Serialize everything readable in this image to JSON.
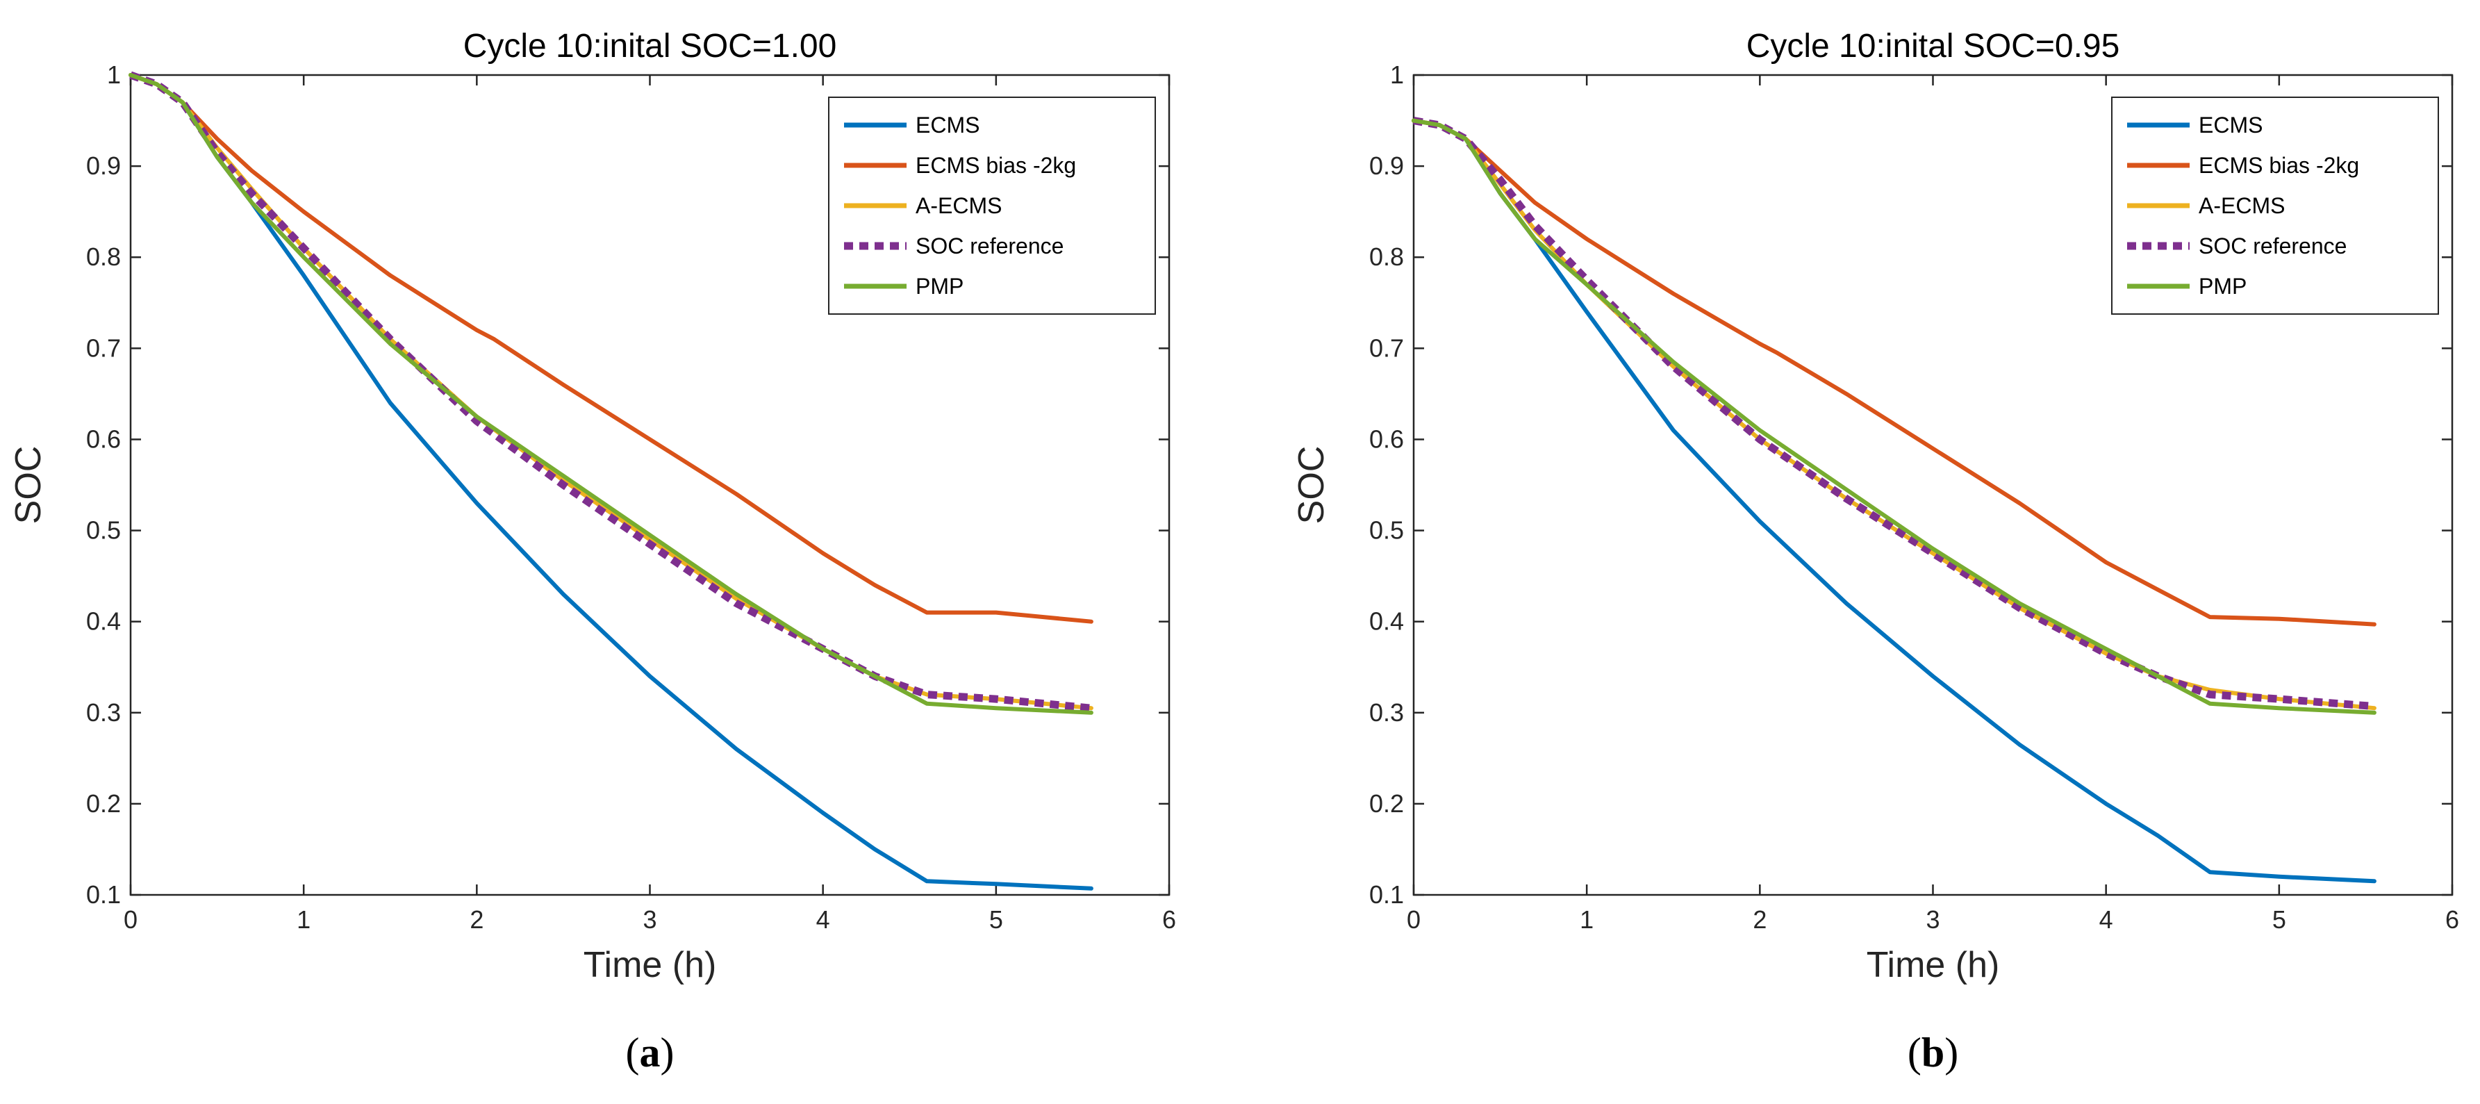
{
  "chart_data": [
    {
      "type": "line",
      "panel_label": "(a)",
      "panel_letter": "a",
      "title": "Cycle 10:inital SOC=1.00",
      "xlabel": "Time (h)",
      "ylabel": "SOC",
      "xlim": [
        0,
        6
      ],
      "ylim": [
        0.1,
        1
      ],
      "x_ticks": [
        "0",
        "1",
        "2",
        "3",
        "4",
        "5",
        "6"
      ],
      "y_ticks": [
        "0.1",
        "0.2",
        "0.3",
        "0.4",
        "0.5",
        "0.6",
        "0.7",
        "0.8",
        "0.9",
        "1"
      ],
      "legend_position": "top-right",
      "series": [
        {
          "name": "ECMS",
          "color": "#0072BD",
          "dash": "solid",
          "x": [
            0,
            0.15,
            0.3,
            0.5,
            0.7,
            1.0,
            1.5,
            2.0,
            2.5,
            3.0,
            3.5,
            4.0,
            4.3,
            4.6,
            5.0,
            5.55
          ],
          "y": [
            1.0,
            0.99,
            0.97,
            0.91,
            0.86,
            0.78,
            0.64,
            0.53,
            0.43,
            0.34,
            0.26,
            0.19,
            0.15,
            0.115,
            0.112,
            0.107
          ]
        },
        {
          "name": "ECMS bias -2kg",
          "color": "#D95319",
          "dash": "solid",
          "x": [
            0,
            0.15,
            0.3,
            0.5,
            0.7,
            1.0,
            1.5,
            2.0,
            2.1,
            2.5,
            3.0,
            3.5,
            4.0,
            4.3,
            4.6,
            5.0,
            5.55
          ],
          "y": [
            1.0,
            0.99,
            0.97,
            0.93,
            0.895,
            0.85,
            0.78,
            0.72,
            0.71,
            0.66,
            0.6,
            0.54,
            0.475,
            0.44,
            0.41,
            0.41,
            0.4
          ]
        },
        {
          "name": "A-ECMS",
          "color": "#EDB120",
          "dash": "solid",
          "x": [
            0,
            0.15,
            0.3,
            0.5,
            0.7,
            1.0,
            1.5,
            2.0,
            2.5,
            3.0,
            3.5,
            4.0,
            4.3,
            4.6,
            5.0,
            5.55
          ],
          "y": [
            1.0,
            0.99,
            0.97,
            0.92,
            0.875,
            0.81,
            0.71,
            0.625,
            0.555,
            0.49,
            0.425,
            0.37,
            0.34,
            0.32,
            0.315,
            0.305
          ]
        },
        {
          "name": "SOC reference",
          "color": "#7E2F8E",
          "dash": "dotted",
          "x": [
            0,
            0.15,
            0.3,
            0.5,
            0.7,
            1.0,
            1.5,
            2.0,
            2.5,
            3.0,
            3.5,
            4.0,
            4.3,
            4.6,
            5.0,
            5.55
          ],
          "y": [
            1.0,
            0.99,
            0.97,
            0.915,
            0.87,
            0.81,
            0.71,
            0.62,
            0.55,
            0.485,
            0.42,
            0.37,
            0.34,
            0.32,
            0.315,
            0.305
          ]
        },
        {
          "name": "PMP",
          "color": "#77AC30",
          "dash": "solid",
          "x": [
            0,
            0.15,
            0.3,
            0.5,
            0.7,
            1.0,
            1.5,
            2.0,
            2.5,
            3.0,
            3.5,
            4.0,
            4.3,
            4.6,
            5.0,
            5.55
          ],
          "y": [
            1.0,
            0.99,
            0.97,
            0.91,
            0.86,
            0.8,
            0.705,
            0.625,
            0.56,
            0.495,
            0.43,
            0.37,
            0.34,
            0.31,
            0.305,
            0.3
          ]
        }
      ]
    },
    {
      "type": "line",
      "panel_label": "(b)",
      "panel_letter": "b",
      "title": "Cycle 10:inital SOC=0.95",
      "xlabel": "Time (h)",
      "ylabel": "SOC",
      "xlim": [
        0,
        6
      ],
      "ylim": [
        0.1,
        1
      ],
      "x_ticks": [
        "0",
        "1",
        "2",
        "3",
        "4",
        "5",
        "6"
      ],
      "y_ticks": [
        "0.1",
        "0.2",
        "0.3",
        "0.4",
        "0.5",
        "0.6",
        "0.7",
        "0.8",
        "0.9",
        "1"
      ],
      "legend_position": "top-right",
      "series": [
        {
          "name": "ECMS",
          "color": "#0072BD",
          "dash": "solid",
          "x": [
            0,
            0.15,
            0.3,
            0.5,
            0.7,
            1.0,
            1.5,
            2.0,
            2.5,
            3.0,
            3.5,
            4.0,
            4.3,
            4.6,
            5.0,
            5.55
          ],
          "y": [
            0.95,
            0.945,
            0.93,
            0.87,
            0.82,
            0.74,
            0.61,
            0.51,
            0.42,
            0.34,
            0.265,
            0.2,
            0.165,
            0.125,
            0.12,
            0.115
          ]
        },
        {
          "name": "ECMS bias -2kg",
          "color": "#D95319",
          "dash": "solid",
          "x": [
            0,
            0.15,
            0.3,
            0.5,
            0.7,
            1.0,
            1.5,
            2.0,
            2.1,
            2.5,
            3.0,
            3.5,
            4.0,
            4.3,
            4.6,
            5.0,
            5.55
          ],
          "y": [
            0.95,
            0.945,
            0.93,
            0.895,
            0.86,
            0.82,
            0.76,
            0.705,
            0.695,
            0.65,
            0.59,
            0.53,
            0.465,
            0.435,
            0.405,
            0.403,
            0.397
          ]
        },
        {
          "name": "A-ECMS",
          "color": "#EDB120",
          "dash": "solid",
          "x": [
            0,
            0.15,
            0.3,
            0.5,
            0.7,
            1.0,
            1.5,
            2.0,
            2.5,
            3.0,
            3.5,
            4.0,
            4.3,
            4.6,
            5.0,
            5.55
          ],
          "y": [
            0.95,
            0.945,
            0.93,
            0.88,
            0.83,
            0.77,
            0.68,
            0.6,
            0.535,
            0.475,
            0.415,
            0.365,
            0.34,
            0.325,
            0.315,
            0.305
          ]
        },
        {
          "name": "SOC reference",
          "color": "#7E2F8E",
          "dash": "dotted",
          "x": [
            0,
            0.15,
            0.3,
            0.5,
            0.7,
            1.0,
            1.5,
            2.0,
            2.5,
            3.0,
            3.5,
            4.0,
            4.3,
            4.6,
            5.0,
            5.55
          ],
          "y": [
            0.95,
            0.945,
            0.93,
            0.885,
            0.835,
            0.775,
            0.68,
            0.6,
            0.535,
            0.475,
            0.415,
            0.365,
            0.34,
            0.32,
            0.315,
            0.307
          ]
        },
        {
          "name": "PMP",
          "color": "#77AC30",
          "dash": "solid",
          "x": [
            0,
            0.15,
            0.3,
            0.5,
            0.7,
            1.0,
            1.5,
            2.0,
            2.5,
            3.0,
            3.5,
            4.0,
            4.3,
            4.6,
            5.0,
            5.55
          ],
          "y": [
            0.95,
            0.945,
            0.93,
            0.87,
            0.82,
            0.77,
            0.685,
            0.61,
            0.545,
            0.48,
            0.42,
            0.37,
            0.34,
            0.31,
            0.305,
            0.3
          ]
        }
      ]
    }
  ]
}
